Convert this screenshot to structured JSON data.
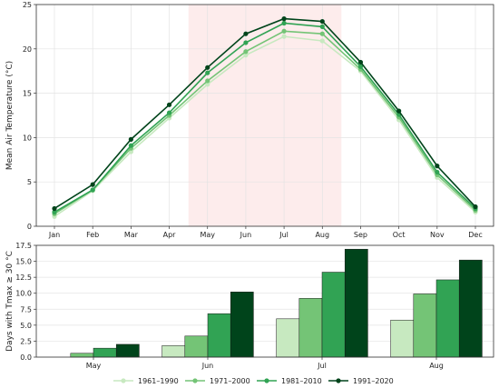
{
  "chart_data": [
    {
      "type": "line",
      "ylabel": "Mean Air Temperature (°C)",
      "xlabel": "",
      "categories": [
        "Jan",
        "Feb",
        "Mar",
        "Apr",
        "May",
        "Jun",
        "Jul",
        "Aug",
        "Sep",
        "Oct",
        "Nov",
        "Dec"
      ],
      "ylim": [
        0,
        25
      ],
      "yticks": [
        "0",
        "5",
        "10",
        "15",
        "20",
        "25"
      ],
      "grid": true,
      "highlight_span": [
        "May",
        "Aug"
      ],
      "highlight_color": "#fdecec",
      "series": [
        {
          "name": "1961–1990",
          "color": "#c7e9c0",
          "values": [
            1.1,
            4.0,
            8.4,
            12.2,
            16.0,
            19.3,
            21.4,
            20.9,
            17.5,
            12.0,
            5.5,
            1.6
          ]
        },
        {
          "name": "1971–2000",
          "color": "#74c476",
          "values": [
            1.4,
            4.1,
            8.8,
            12.5,
            16.4,
            19.7,
            22.0,
            21.7,
            17.7,
            12.3,
            5.8,
            1.8
          ]
        },
        {
          "name": "1981–2010",
          "color": "#31a354",
          "values": [
            1.6,
            4.1,
            9.1,
            12.8,
            17.3,
            20.7,
            22.9,
            22.5,
            18.0,
            12.6,
            6.1,
            2.0
          ]
        },
        {
          "name": "1991–2020",
          "color": "#00441b",
          "values": [
            2.0,
            4.7,
            9.8,
            13.7,
            17.9,
            21.7,
            23.4,
            23.1,
            18.5,
            13.0,
            6.8,
            2.2
          ]
        }
      ]
    },
    {
      "type": "bar",
      "ylabel": "Days with Tmax ≥ 30 °C",
      "xlabel": "",
      "categories": [
        "May",
        "Jun",
        "Jul",
        "Aug"
      ],
      "ylim": [
        0,
        17.5
      ],
      "yticks": [
        "0.0",
        "2.5",
        "5.0",
        "7.5",
        "10.0",
        "12.5",
        "15.0",
        "17.5"
      ],
      "grid": true,
      "series": [
        {
          "name": "1961–1990",
          "color": "#c7e9c0",
          "values": [
            0.0,
            1.8,
            6.0,
            5.8
          ]
        },
        {
          "name": "1971–2000",
          "color": "#74c476",
          "values": [
            0.6,
            3.3,
            9.2,
            9.9
          ]
        },
        {
          "name": "1981–2010",
          "color": "#31a354",
          "values": [
            1.4,
            6.8,
            13.3,
            12.1
          ]
        },
        {
          "name": "1991–2020",
          "color": "#00441b",
          "values": [
            2.0,
            10.2,
            16.9,
            15.2
          ]
        }
      ]
    }
  ],
  "legend": {
    "placement": "bottom-center",
    "entries": [
      {
        "label": "1961–1990",
        "color": "#c7e9c0"
      },
      {
        "label": "1971–2000",
        "color": "#74c476"
      },
      {
        "label": "1981–2010",
        "color": "#31a354"
      },
      {
        "label": "1991–2020",
        "color": "#00441b"
      }
    ]
  }
}
